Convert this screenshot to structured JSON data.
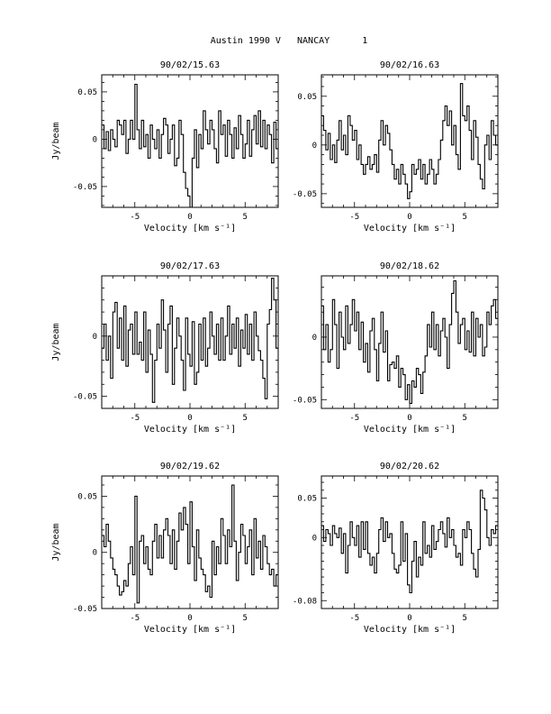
{
  "page_title": "Austin 1990 V   NANCAY      1",
  "chart_data": [
    {
      "type": "line",
      "title": "90/02/15.63",
      "xlabel": "Velocity [km s⁻¹]",
      "ylabel": "Jy/beam",
      "xlim": [
        -8.0,
        8.0
      ],
      "ylim": [
        -0.072,
        0.068
      ],
      "xticks": [
        -5,
        0,
        5
      ],
      "xtick_labels": [
        "-5",
        "0",
        "5"
      ],
      "yticks": [
        0.05,
        0,
        -0.05
      ],
      "ytick_labels": [
        "0.05",
        "0",
        "-0.05"
      ],
      "style": "step",
      "x": [
        -8.0,
        -7.8,
        -7.6,
        -7.4,
        -7.2,
        -7.0,
        -6.8,
        -6.6,
        -6.4,
        -6.2,
        -6.0,
        -5.8,
        -5.6,
        -5.4,
        -5.2,
        -5.0,
        -4.8,
        -4.6,
        -4.4,
        -4.2,
        -4.0,
        -3.8,
        -3.6,
        -3.4,
        -3.2,
        -3.0,
        -2.8,
        -2.6,
        -2.4,
        -2.2,
        -2.0,
        -1.8,
        -1.6,
        -1.4,
        -1.2,
        -1.0,
        -0.8,
        -0.6,
        -0.4,
        -0.2,
        0.0,
        0.2,
        0.4,
        0.6,
        0.8,
        1.0,
        1.2,
        1.4,
        1.6,
        1.8,
        2.0,
        2.2,
        2.4,
        2.6,
        2.8,
        3.0,
        3.2,
        3.4,
        3.6,
        3.8,
        4.0,
        4.2,
        4.4,
        4.6,
        4.8,
        5.0,
        5.2,
        5.4,
        5.6,
        5.8,
        6.0,
        6.2,
        6.4,
        6.6,
        6.8,
        7.0,
        7.2,
        7.4,
        7.6,
        7.8
      ],
      "y": [
        0.015,
        -0.01,
        0.008,
        -0.012,
        0.01,
        0.0,
        -0.008,
        0.02,
        0.015,
        0.005,
        0.02,
        -0.015,
        0.0,
        0.02,
        0.0,
        0.058,
        0.01,
        -0.01,
        0.02,
        -0.008,
        0.005,
        -0.02,
        0.015,
        0.0,
        -0.01,
        0.01,
        -0.02,
        0.005,
        0.022,
        0.015,
        -0.015,
        0.0,
        0.015,
        -0.028,
        -0.02,
        0.02,
        0.005,
        -0.035,
        -0.052,
        -0.06,
        -0.072,
        -0.02,
        0.01,
        -0.03,
        0.005,
        -0.01,
        0.03,
        0.01,
        -0.005,
        0.02,
        0.01,
        -0.01,
        -0.025,
        0.03,
        0.005,
        0.015,
        -0.018,
        0.02,
        0.005,
        -0.02,
        0.012,
        -0.01,
        0.025,
        0.005,
        -0.02,
        -0.005,
        0.02,
        -0.018,
        0.01,
        0.025,
        -0.005,
        0.03,
        -0.008,
        0.02,
        -0.01,
        0.015,
        0.005,
        -0.025,
        0.018,
        -0.01
      ]
    },
    {
      "type": "line",
      "title": "90/02/16.63",
      "xlabel": "Velocity [km s⁻¹]",
      "ylabel": "",
      "xlim": [
        -8.0,
        8.0
      ],
      "ylim": [
        -0.064,
        0.072
      ],
      "xticks": [
        -5,
        0,
        5
      ],
      "xtick_labels": [
        "-5",
        "0",
        "5"
      ],
      "yticks": [
        0.05,
        0,
        -0.05
      ],
      "ytick_labels": [
        "0.05",
        "0",
        "-0.05"
      ],
      "style": "step",
      "x": [
        -8.0,
        -7.8,
        -7.6,
        -7.4,
        -7.2,
        -7.0,
        -6.8,
        -6.6,
        -6.4,
        -6.2,
        -6.0,
        -5.8,
        -5.6,
        -5.4,
        -5.2,
        -5.0,
        -4.8,
        -4.6,
        -4.4,
        -4.2,
        -4.0,
        -3.8,
        -3.6,
        -3.4,
        -3.2,
        -3.0,
        -2.8,
        -2.6,
        -2.4,
        -2.2,
        -2.0,
        -1.8,
        -1.6,
        -1.4,
        -1.2,
        -1.0,
        -0.8,
        -0.6,
        -0.4,
        -0.2,
        0.0,
        0.2,
        0.4,
        0.6,
        0.8,
        1.0,
        1.2,
        1.4,
        1.6,
        1.8,
        2.0,
        2.2,
        2.4,
        2.6,
        2.8,
        3.0,
        3.2,
        3.4,
        3.6,
        3.8,
        4.0,
        4.2,
        4.4,
        4.6,
        4.8,
        5.0,
        5.2,
        5.4,
        5.6,
        5.8,
        6.0,
        6.2,
        6.4,
        6.6,
        6.8,
        7.0,
        7.2,
        7.4,
        7.6,
        7.8
      ],
      "y": [
        0.03,
        0.015,
        -0.005,
        0.012,
        -0.015,
        0.0,
        -0.018,
        0.005,
        0.025,
        -0.005,
        0.01,
        -0.01,
        0.03,
        0.02,
        0.005,
        0.015,
        -0.015,
        0.0,
        -0.02,
        -0.03,
        -0.02,
        -0.012,
        -0.025,
        -0.02,
        -0.01,
        -0.028,
        0.005,
        0.025,
        0.0,
        0.02,
        0.012,
        -0.005,
        -0.02,
        -0.035,
        -0.025,
        -0.04,
        -0.02,
        -0.03,
        -0.04,
        -0.055,
        -0.048,
        -0.02,
        -0.03,
        -0.025,
        -0.015,
        -0.035,
        -0.02,
        -0.04,
        -0.03,
        -0.015,
        -0.025,
        -0.04,
        -0.03,
        -0.015,
        0.005,
        0.025,
        0.04,
        0.02,
        0.035,
        0.0,
        0.02,
        -0.01,
        -0.025,
        0.063,
        0.03,
        0.025,
        0.04,
        0.015,
        -0.015,
        0.025,
        0.008,
        -0.02,
        -0.035,
        -0.045,
        0.0,
        0.01,
        -0.015,
        0.025,
        0.01,
        0.0
      ]
    },
    {
      "type": "line",
      "title": "90/02/17.63",
      "xlabel": "Velocity [km s⁻¹]",
      "ylabel": "Jy/beam",
      "xlim": [
        -8.0,
        8.0
      ],
      "ylim": [
        -0.06,
        0.05
      ],
      "xticks": [
        -5,
        0,
        5
      ],
      "xtick_labels": [
        "-5",
        "0",
        "5"
      ],
      "yticks": [
        0,
        -0.05
      ],
      "ytick_labels": [
        "0",
        "-0.05"
      ],
      "style": "step",
      "x": [
        -8.0,
        -7.8,
        -7.6,
        -7.4,
        -7.2,
        -7.0,
        -6.8,
        -6.6,
        -6.4,
        -6.2,
        -6.0,
        -5.8,
        -5.6,
        -5.4,
        -5.2,
        -5.0,
        -4.8,
        -4.6,
        -4.4,
        -4.2,
        -4.0,
        -3.8,
        -3.6,
        -3.4,
        -3.2,
        -3.0,
        -2.8,
        -2.6,
        -2.4,
        -2.2,
        -2.0,
        -1.8,
        -1.6,
        -1.4,
        -1.2,
        -1.0,
        -0.8,
        -0.6,
        -0.4,
        -0.2,
        0.0,
        0.2,
        0.4,
        0.6,
        0.8,
        1.0,
        1.2,
        1.4,
        1.6,
        1.8,
        2.0,
        2.2,
        2.4,
        2.6,
        2.8,
        3.0,
        3.2,
        3.4,
        3.6,
        3.8,
        4.0,
        4.2,
        4.4,
        4.6,
        4.8,
        5.0,
        5.2,
        5.4,
        5.6,
        5.8,
        6.0,
        6.2,
        6.4,
        6.6,
        6.8,
        7.0,
        7.2,
        7.4,
        7.6,
        7.8
      ],
      "y": [
        -0.01,
        0.01,
        -0.02,
        0.0,
        -0.035,
        0.02,
        0.028,
        -0.01,
        0.015,
        -0.02,
        0.025,
        -0.025,
        0.005,
        0.01,
        -0.015,
        0.02,
        -0.015,
        -0.005,
        -0.02,
        0.02,
        -0.03,
        0.005,
        -0.015,
        -0.055,
        -0.02,
        0.01,
        -0.01,
        0.03,
        0.005,
        -0.03,
        0.01,
        0.025,
        -0.04,
        -0.01,
        0.015,
        0.0,
        -0.02,
        -0.045,
        0.015,
        -0.015,
        -0.025,
        0.012,
        -0.04,
        -0.03,
        0.01,
        -0.02,
        0.015,
        -0.025,
        -0.01,
        0.02,
        0.0,
        -0.015,
        0.01,
        -0.02,
        0.015,
        -0.02,
        0.0,
        0.025,
        -0.015,
        0.01,
        -0.01,
        0.015,
        -0.025,
        0.005,
        -0.01,
        0.018,
        -0.015,
        0.01,
        -0.02,
        0.02,
        0.0,
        -0.012,
        -0.02,
        -0.035,
        -0.052,
        0.01,
        0.022,
        0.048,
        0.03,
        -0.01
      ]
    },
    {
      "type": "line",
      "title": "90/02/18.62",
      "xlabel": "Velocity [km s⁻¹]",
      "ylabel": "",
      "xlim": [
        -8.0,
        8.0
      ],
      "ylim": [
        -0.057,
        0.049
      ],
      "xticks": [
        -5,
        0,
        5
      ],
      "xtick_labels": [
        "-5",
        "0",
        "5"
      ],
      "yticks": [
        0,
        -0.05
      ],
      "ytick_labels": [
        "0",
        "-0.05"
      ],
      "style": "step",
      "x": [
        -8.0,
        -7.8,
        -7.6,
        -7.4,
        -7.2,
        -7.0,
        -6.8,
        -6.6,
        -6.4,
        -6.2,
        -6.0,
        -5.8,
        -5.6,
        -5.4,
        -5.2,
        -5.0,
        -4.8,
        -4.6,
        -4.4,
        -4.2,
        -4.0,
        -3.8,
        -3.6,
        -3.4,
        -3.2,
        -3.0,
        -2.8,
        -2.6,
        -2.4,
        -2.2,
        -2.0,
        -1.8,
        -1.6,
        -1.4,
        -1.2,
        -1.0,
        -0.8,
        -0.6,
        -0.4,
        -0.2,
        0.0,
        0.2,
        0.4,
        0.6,
        0.8,
        1.0,
        1.2,
        1.4,
        1.6,
        1.8,
        2.0,
        2.2,
        2.4,
        2.6,
        2.8,
        3.0,
        3.2,
        3.4,
        3.6,
        3.8,
        4.0,
        4.2,
        4.4,
        4.6,
        4.8,
        5.0,
        5.2,
        5.4,
        5.6,
        5.8,
        6.0,
        6.2,
        6.4,
        6.6,
        6.8,
        7.0,
        7.2,
        7.4,
        7.6,
        7.8
      ],
      "y": [
        0.025,
        -0.01,
        0.01,
        -0.02,
        -0.01,
        0.03,
        0.01,
        -0.025,
        0.02,
        0.0,
        -0.01,
        0.025,
        -0.005,
        0.01,
        0.03,
        0.005,
        0.02,
        -0.01,
        0.012,
        -0.02,
        -0.005,
        -0.028,
        0.005,
        0.015,
        -0.01,
        -0.035,
        -0.005,
        0.02,
        -0.012,
        0.005,
        -0.035,
        -0.022,
        -0.02,
        -0.025,
        -0.015,
        -0.04,
        -0.025,
        -0.03,
        -0.05,
        -0.038,
        -0.053,
        -0.035,
        -0.04,
        -0.025,
        -0.03,
        -0.045,
        -0.028,
        -0.015,
        0.01,
        -0.008,
        0.02,
        -0.01,
        0.01,
        -0.015,
        0.005,
        0.015,
        0.0,
        -0.025,
        0.01,
        0.035,
        0.045,
        0.02,
        -0.005,
        0.01,
        0.015,
        -0.01,
        0.005,
        -0.012,
        0.02,
        -0.015,
        0.015,
        0.0,
        0.01,
        -0.015,
        -0.008,
        0.02,
        0.01,
        0.025,
        0.03,
        0.015
      ]
    },
    {
      "type": "line",
      "title": "90/02/19.62",
      "xlabel": "Velocity [km s⁻¹]",
      "ylabel": "Jy/beam",
      "xlim": [
        -8.0,
        8.0
      ],
      "ylim": [
        -0.05,
        0.068
      ],
      "xticks": [
        -5,
        0,
        5
      ],
      "xtick_labels": [
        "-5",
        "0",
        "5"
      ],
      "yticks": [
        0.05,
        0,
        -0.05
      ],
      "ytick_labels": [
        "0.05",
        "0",
        "-0.05"
      ],
      "style": "step",
      "x": [
        -8.0,
        -7.8,
        -7.6,
        -7.4,
        -7.2,
        -7.0,
        -6.8,
        -6.6,
        -6.4,
        -6.2,
        -6.0,
        -5.8,
        -5.6,
        -5.4,
        -5.2,
        -5.0,
        -4.8,
        -4.6,
        -4.4,
        -4.2,
        -4.0,
        -3.8,
        -3.6,
        -3.4,
        -3.2,
        -3.0,
        -2.8,
        -2.6,
        -2.4,
        -2.2,
        -2.0,
        -1.8,
        -1.6,
        -1.4,
        -1.2,
        -1.0,
        -0.8,
        -0.6,
        -0.4,
        -0.2,
        0.0,
        0.2,
        0.4,
        0.6,
        0.8,
        1.0,
        1.2,
        1.4,
        1.6,
        1.8,
        2.0,
        2.2,
        2.4,
        2.6,
        2.8,
        3.0,
        3.2,
        3.4,
        3.6,
        3.8,
        4.0,
        4.2,
        4.4,
        4.6,
        4.8,
        5.0,
        5.2,
        5.4,
        5.6,
        5.8,
        6.0,
        6.2,
        6.4,
        6.6,
        6.8,
        7.0,
        7.2,
        7.4,
        7.6,
        7.8
      ],
      "y": [
        0.015,
        0.005,
        0.025,
        0.01,
        -0.005,
        -0.015,
        -0.02,
        -0.03,
        -0.038,
        -0.035,
        -0.025,
        -0.03,
        -0.01,
        0.005,
        -0.02,
        0.05,
        -0.045,
        0.01,
        0.015,
        -0.01,
        0.005,
        -0.015,
        -0.02,
        0.01,
        0.025,
        -0.005,
        0.015,
        -0.005,
        0.02,
        0.03,
        0.015,
        -0.01,
        0.02,
        -0.015,
        0.01,
        0.035,
        0.02,
        0.04,
        0.025,
        -0.01,
        0.045,
        0.005,
        -0.025,
        0.02,
        -0.005,
        -0.015,
        -0.02,
        -0.035,
        -0.03,
        -0.04,
        0.01,
        -0.02,
        0.005,
        -0.01,
        0.03,
        0.015,
        -0.01,
        0.02,
        0.005,
        0.06,
        0.01,
        -0.025,
        0.0,
        0.025,
        0.015,
        -0.01,
        0.005,
        0.02,
        -0.02,
        0.03,
        -0.005,
        0.01,
        -0.015,
        0.015,
        0.005,
        -0.01,
        -0.02,
        -0.015,
        -0.03,
        -0.02
      ]
    },
    {
      "type": "line",
      "title": "90/02/20.62",
      "xlabel": "Velocity [km s⁻¹]",
      "ylabel": "",
      "xlim": [
        -8.0,
        8.0
      ],
      "ylim": [
        -0.09,
        0.078
      ],
      "xticks": [
        -5,
        0,
        5
      ],
      "xtick_labels": [
        "-5",
        "0",
        "5"
      ],
      "yticks": [
        0.05,
        0,
        -0.08
      ],
      "ytick_labels": [
        "0.05",
        "0",
        "-0.08"
      ],
      "style": "step",
      "x": [
        -8.0,
        -7.8,
        -7.6,
        -7.4,
        -7.2,
        -7.0,
        -6.8,
        -6.6,
        -6.4,
        -6.2,
        -6.0,
        -5.8,
        -5.6,
        -5.4,
        -5.2,
        -5.0,
        -4.8,
        -4.6,
        -4.4,
        -4.2,
        -4.0,
        -3.8,
        -3.6,
        -3.4,
        -3.2,
        -3.0,
        -2.8,
        -2.6,
        -2.4,
        -2.2,
        -2.0,
        -1.8,
        -1.6,
        -1.4,
        -1.2,
        -1.0,
        -0.8,
        -0.6,
        -0.4,
        -0.2,
        0.0,
        0.2,
        0.4,
        0.6,
        0.8,
        1.0,
        1.2,
        1.4,
        1.6,
        1.8,
        2.0,
        2.2,
        2.4,
        2.6,
        2.8,
        3.0,
        3.2,
        3.4,
        3.6,
        3.8,
        4.0,
        4.2,
        4.4,
        4.6,
        4.8,
        5.0,
        5.2,
        5.4,
        5.6,
        5.8,
        6.0,
        6.2,
        6.4,
        6.6,
        6.8,
        7.0,
        7.2,
        7.4,
        7.6,
        7.8
      ],
      "y": [
        0.015,
        -0.005,
        0.01,
        0.005,
        -0.01,
        0.015,
        0.005,
        0.0,
        0.012,
        -0.02,
        0.005,
        -0.045,
        -0.01,
        0.02,
        0.0,
        -0.01,
        0.015,
        -0.025,
        0.02,
        -0.015,
        0.02,
        -0.02,
        -0.035,
        -0.025,
        -0.045,
        -0.02,
        0.01,
        0.025,
        -0.005,
        0.02,
        0.0,
        0.005,
        -0.02,
        -0.04,
        -0.045,
        -0.035,
        0.02,
        -0.03,
        0.005,
        -0.06,
        -0.07,
        -0.03,
        -0.005,
        -0.05,
        -0.025,
        -0.035,
        0.02,
        -0.02,
        -0.01,
        -0.025,
        0.015,
        -0.015,
        -0.005,
        0.01,
        0.02,
        0.005,
        -0.012,
        0.025,
        0.0,
        0.01,
        -0.01,
        -0.025,
        -0.02,
        -0.035,
        0.01,
        0.0,
        0.02,
        0.01,
        -0.02,
        -0.04,
        -0.05,
        -0.015,
        0.06,
        0.05,
        0.035,
        0.0,
        -0.01,
        0.01,
        0.005,
        0.015
      ]
    }
  ]
}
